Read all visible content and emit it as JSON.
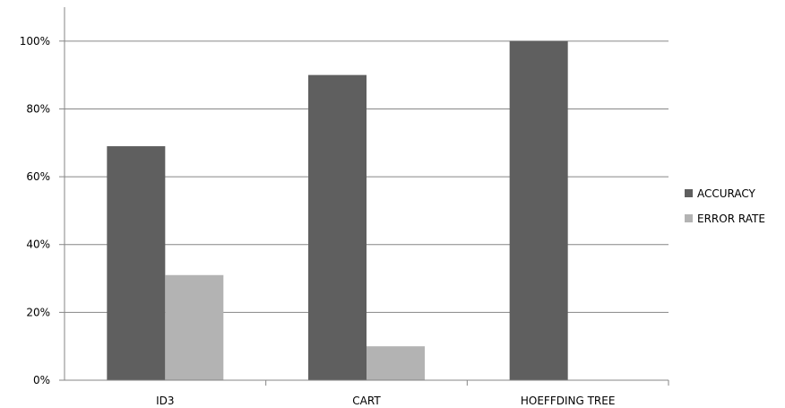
{
  "chart_data": {
    "type": "bar",
    "categories": [
      "ID3",
      "CART",
      "HOEFFDING TREE"
    ],
    "series": [
      {
        "name": "ACCURACY",
        "values": [
          69,
          90,
          100
        ],
        "color": "#5f5f5f"
      },
      {
        "name": "ERROR RATE",
        "values": [
          31,
          10,
          0
        ],
        "color": "#b3b3b3"
      }
    ],
    "ylim": [
      0,
      110
    ],
    "yticks": [
      0,
      20,
      40,
      60,
      80,
      100
    ],
    "ytick_labels": [
      "0%",
      "20%",
      "40%",
      "60%",
      "80%",
      "100%"
    ],
    "grid": true,
    "legend": "right",
    "title": "",
    "xlabel": "",
    "ylabel": ""
  }
}
